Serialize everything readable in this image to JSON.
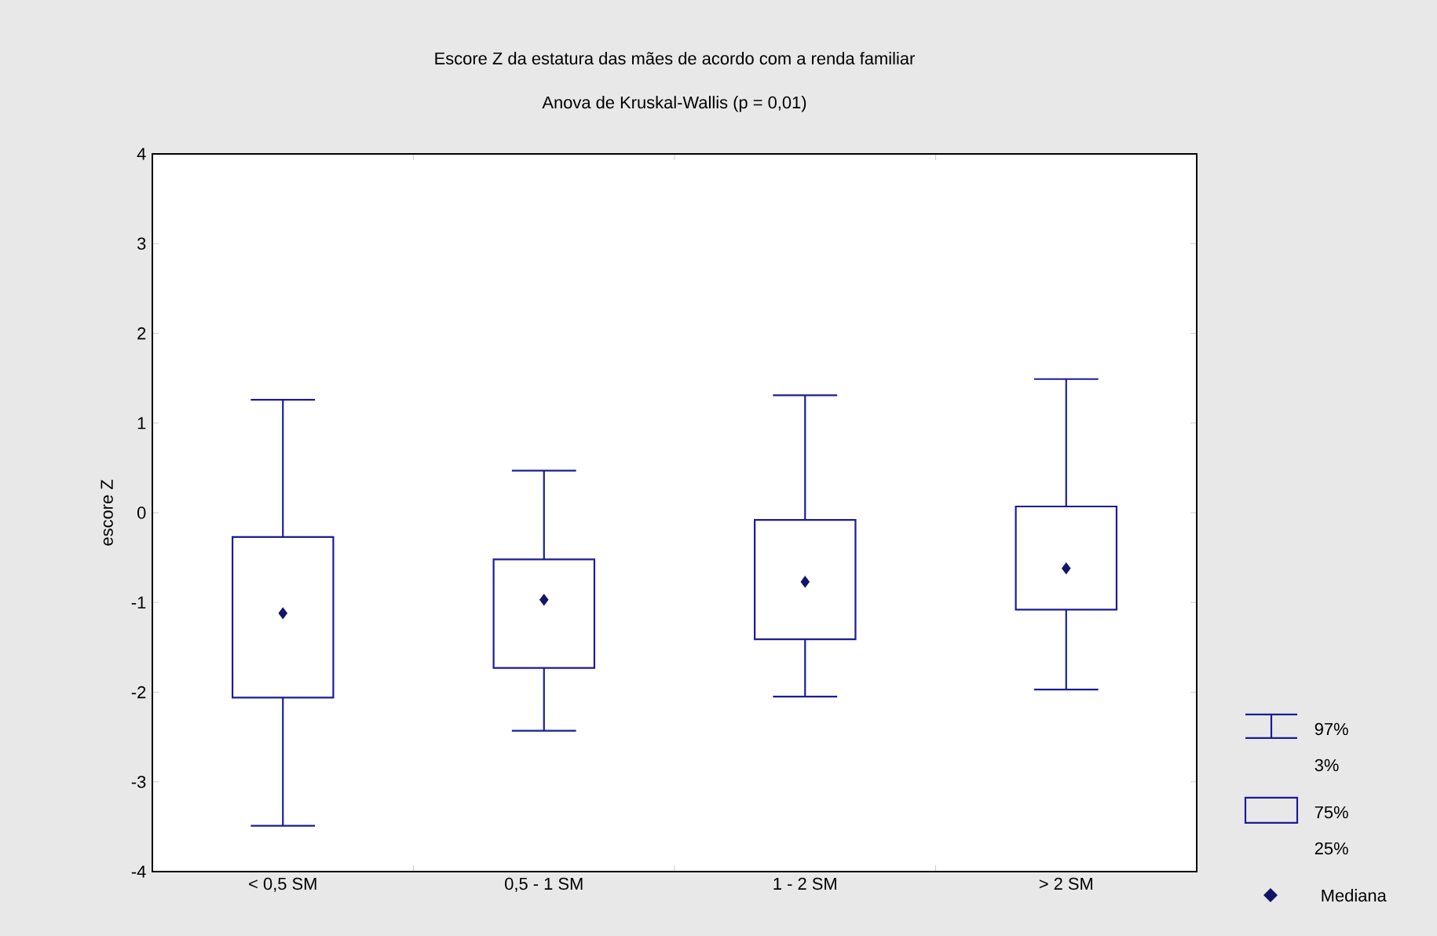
{
  "chart_data": {
    "type": "box",
    "title": "Escore Z da estatura das mães de acordo com a renda familiar",
    "subtitle": "Anova de Kruskal-Wallis (p = 0,01)",
    "ylabel": "escore Z",
    "categories": [
      "< 0,5 SM",
      "0,5 - 1 SM",
      "1 - 2 SM",
      "> 2 SM"
    ],
    "boxes": [
      {
        "low": -3.49,
        "q1": -2.06,
        "median": -1.12,
        "q3": -0.27,
        "high": 1.26
      },
      {
        "low": -2.43,
        "q1": -1.73,
        "median": -0.97,
        "q3": -0.52,
        "high": 0.47
      },
      {
        "low": -2.05,
        "q1": -1.41,
        "median": -0.77,
        "q3": -0.08,
        "high": 1.31
      },
      {
        "low": -1.97,
        "q1": -1.08,
        "median": -0.62,
        "q3": 0.07,
        "high": 1.49
      }
    ],
    "color": "#1c1c96",
    "marker": "diamond",
    "ylim": [
      -4,
      4
    ],
    "yticks": [
      -4,
      -3,
      -2,
      -1,
      0,
      1,
      2,
      3,
      4
    ],
    "grid": false,
    "annotations": [
      "97%",
      "3%",
      "75%",
      "25%",
      "Mediana"
    ]
  }
}
